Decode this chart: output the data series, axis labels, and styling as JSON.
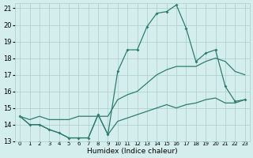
{
  "x": [
    0,
    1,
    2,
    3,
    4,
    5,
    6,
    7,
    8,
    9,
    10,
    11,
    12,
    13,
    14,
    15,
    16,
    17,
    18,
    19,
    20,
    21,
    22,
    23
  ],
  "line_upper": [
    14.5,
    14.0,
    14.0,
    13.7,
    13.5,
    13.2,
    13.2,
    13.2,
    14.6,
    13.4,
    17.2,
    18.5,
    18.5,
    19.9,
    20.7,
    20.8,
    21.2,
    19.8,
    17.8,
    18.3,
    18.5,
    16.3,
    15.4,
    15.5
  ],
  "line_mid": [
    14.5,
    14.3,
    14.5,
    14.3,
    14.3,
    14.3,
    14.5,
    14.5,
    14.5,
    14.5,
    15.5,
    15.8,
    16.0,
    16.5,
    17.0,
    17.3,
    17.5,
    17.5,
    17.5,
    17.8,
    18.0,
    17.8,
    17.2,
    17.0
  ],
  "line_lower": [
    14.5,
    14.0,
    14.0,
    13.7,
    13.5,
    13.2,
    13.2,
    13.2,
    14.6,
    13.4,
    14.2,
    14.4,
    14.6,
    14.8,
    15.0,
    15.2,
    15.0,
    15.2,
    15.3,
    15.5,
    15.6,
    15.3,
    15.3,
    15.5
  ],
  "line_color": "#2e7d6e",
  "bg_color": "#d4eeed",
  "grid_color": "#aacdc8",
  "ymin": 13,
  "ymax": 21,
  "xlabel": "Humidex (Indice chaleur)",
  "xtick_labels": [
    "0",
    "1",
    "2",
    "3",
    "4",
    "5",
    "6",
    "7",
    "8",
    "9",
    "10",
    "11",
    "12",
    "13",
    "14",
    "15",
    "16",
    "17",
    "18",
    "19",
    "20",
    "21",
    "22",
    "23"
  ]
}
